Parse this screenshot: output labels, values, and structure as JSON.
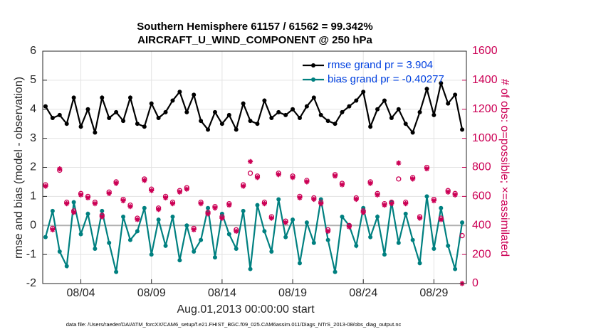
{
  "chart_data": {
    "type": "line",
    "title": "Southern Hemisphere 61157 / 61562 = 99.342%",
    "subtitle": "AIRCRAFT_U_WIND_COMPONENT @ 250 hPa",
    "xlabel": "Aug.01,2013 00:00:00 start",
    "ylabel": "rmse and bias (model - observation)",
    "y2label": "# of obs: o=possible; ×=assimilated",
    "footnote": "data file: /Users/raeder/DAI/ATM_forcXX/CAM6_setup/f.e21.FHIST_BGC.f09_025.CAM6assim.011/Diags_NTrS_2013-08/obs_diag_output.nc",
    "x": [
      0.5,
      1.0,
      1.5,
      2.0,
      2.5,
      3.0,
      3.5,
      4.0,
      4.5,
      5.0,
      5.5,
      6.0,
      6.5,
      7.0,
      7.5,
      8.0,
      8.5,
      9.0,
      9.5,
      10.0,
      10.5,
      11.0,
      11.5,
      12.0,
      12.5,
      13.0,
      13.5,
      14.0,
      14.5,
      15.0,
      15.5,
      16.0,
      16.5,
      17.0,
      17.5,
      18.0,
      18.5,
      19.0,
      19.5,
      20.0,
      20.5,
      21.0,
      21.5,
      22.0,
      22.5,
      23.0,
      23.5,
      24.0,
      24.5,
      25.0,
      25.5,
      26.0,
      26.5,
      27.0,
      27.5,
      28.0,
      28.5,
      29.0,
      29.5,
      30.0
    ],
    "xlim": [
      0.3,
      30.3
    ],
    "xticks": [
      {
        "value": 3,
        "label": "08/04"
      },
      {
        "value": 8,
        "label": "08/09"
      },
      {
        "value": 13,
        "label": "08/14"
      },
      {
        "value": 18,
        "label": "08/19"
      },
      {
        "value": 23,
        "label": "08/24"
      },
      {
        "value": 28,
        "label": "08/29"
      }
    ],
    "ylim": [
      -2,
      6
    ],
    "yticks": [
      -2,
      -1,
      0,
      1,
      2,
      3,
      4,
      5,
      6
    ],
    "y2lim": [
      0,
      1600
    ],
    "y2ticks": [
      0,
      200,
      400,
      600,
      800,
      1000,
      1200,
      1400,
      1600
    ],
    "grid": true,
    "reference_line": 0,
    "legend": "northeast",
    "series": [
      {
        "name": "rmse grand pr = 3.904",
        "color": "#000000",
        "values": [
          4.1,
          3.7,
          3.8,
          3.5,
          4.4,
          3.4,
          4.0,
          3.2,
          4.4,
          3.7,
          3.9,
          3.6,
          4.4,
          3.5,
          3.4,
          4.2,
          3.7,
          3.9,
          4.3,
          4.6,
          3.9,
          4.5,
          3.6,
          3.3,
          3.9,
          3.5,
          3.8,
          3.3,
          4.2,
          3.6,
          3.5,
          4.3,
          3.7,
          3.9,
          3.8,
          4.0,
          3.7,
          4.1,
          4.4,
          3.8,
          3.6,
          3.5,
          3.9,
          4.1,
          4.3,
          4.6,
          3.4,
          4.0,
          4.3,
          3.7,
          4.0,
          3.5,
          3.2,
          3.9,
          4.7,
          3.8,
          4.9,
          4.2,
          4.5,
          3.3
        ]
      },
      {
        "name": "bias grand pr = -0.40277",
        "color": "#008080",
        "values": [
          -0.4,
          0.5,
          -0.9,
          -1.4,
          0.8,
          -0.3,
          0.4,
          -0.8,
          0.5,
          -0.6,
          -1.6,
          0.3,
          -0.5,
          -0.2,
          0.6,
          -1.0,
          0.2,
          -0.7,
          0.3,
          -1.2,
          0.0,
          -0.9,
          -0.5,
          0.6,
          -1.1,
          0.4,
          -0.3,
          -0.8,
          0.5,
          -1.5,
          0.7,
          -0.2,
          -0.9,
          0.9,
          -0.4,
          0.2,
          -1.3,
          0.1,
          -0.6,
          0.9,
          -0.5,
          -1.6,
          0.3,
          0.0,
          -0.7,
          0.6,
          -0.4,
          0.3,
          -1.0,
          0.8,
          -0.6,
          0.4,
          -0.5,
          -1.3,
          1.0,
          -0.8,
          0.6,
          -0.7,
          -1.5,
          0.1
        ]
      },
      {
        "axis": "y2",
        "marker": "o",
        "color": "#cc0055",
        "values": [
          680,
          380,
          780,
          560,
          500,
          620,
          600,
          560,
          470,
          630,
          700,
          580,
          540,
          450,
          720,
          650,
          520,
          600,
          560,
          640,
          660,
          380,
          560,
          490,
          530,
          460,
          550,
          370,
          680,
          760,
          740,
          560,
          460,
          760,
          430,
          740,
          600,
          710,
          590,
          560,
          370,
          750,
          690,
          400,
          590,
          500,
          700,
          620,
          550,
          560,
          720,
          560,
          730,
          460,
          800,
          580,
          450,
          640,
          620,
          330
        ]
      },
      {
        "axis": "y2",
        "marker": "*",
        "color": "#cc0055",
        "values": [
          670,
          370,
          790,
          550,
          490,
          610,
          590,
          550,
          460,
          620,
          690,
          570,
          530,
          440,
          710,
          640,
          510,
          590,
          550,
          630,
          650,
          370,
          550,
          480,
          520,
          450,
          540,
          360,
          670,
          840,
          730,
          550,
          450,
          750,
          420,
          730,
          590,
          700,
          580,
          550,
          360,
          740,
          680,
          390,
          580,
          490,
          690,
          610,
          540,
          550,
          830,
          550,
          720,
          450,
          790,
          570,
          440,
          630,
          610,
          0
        ]
      }
    ]
  }
}
